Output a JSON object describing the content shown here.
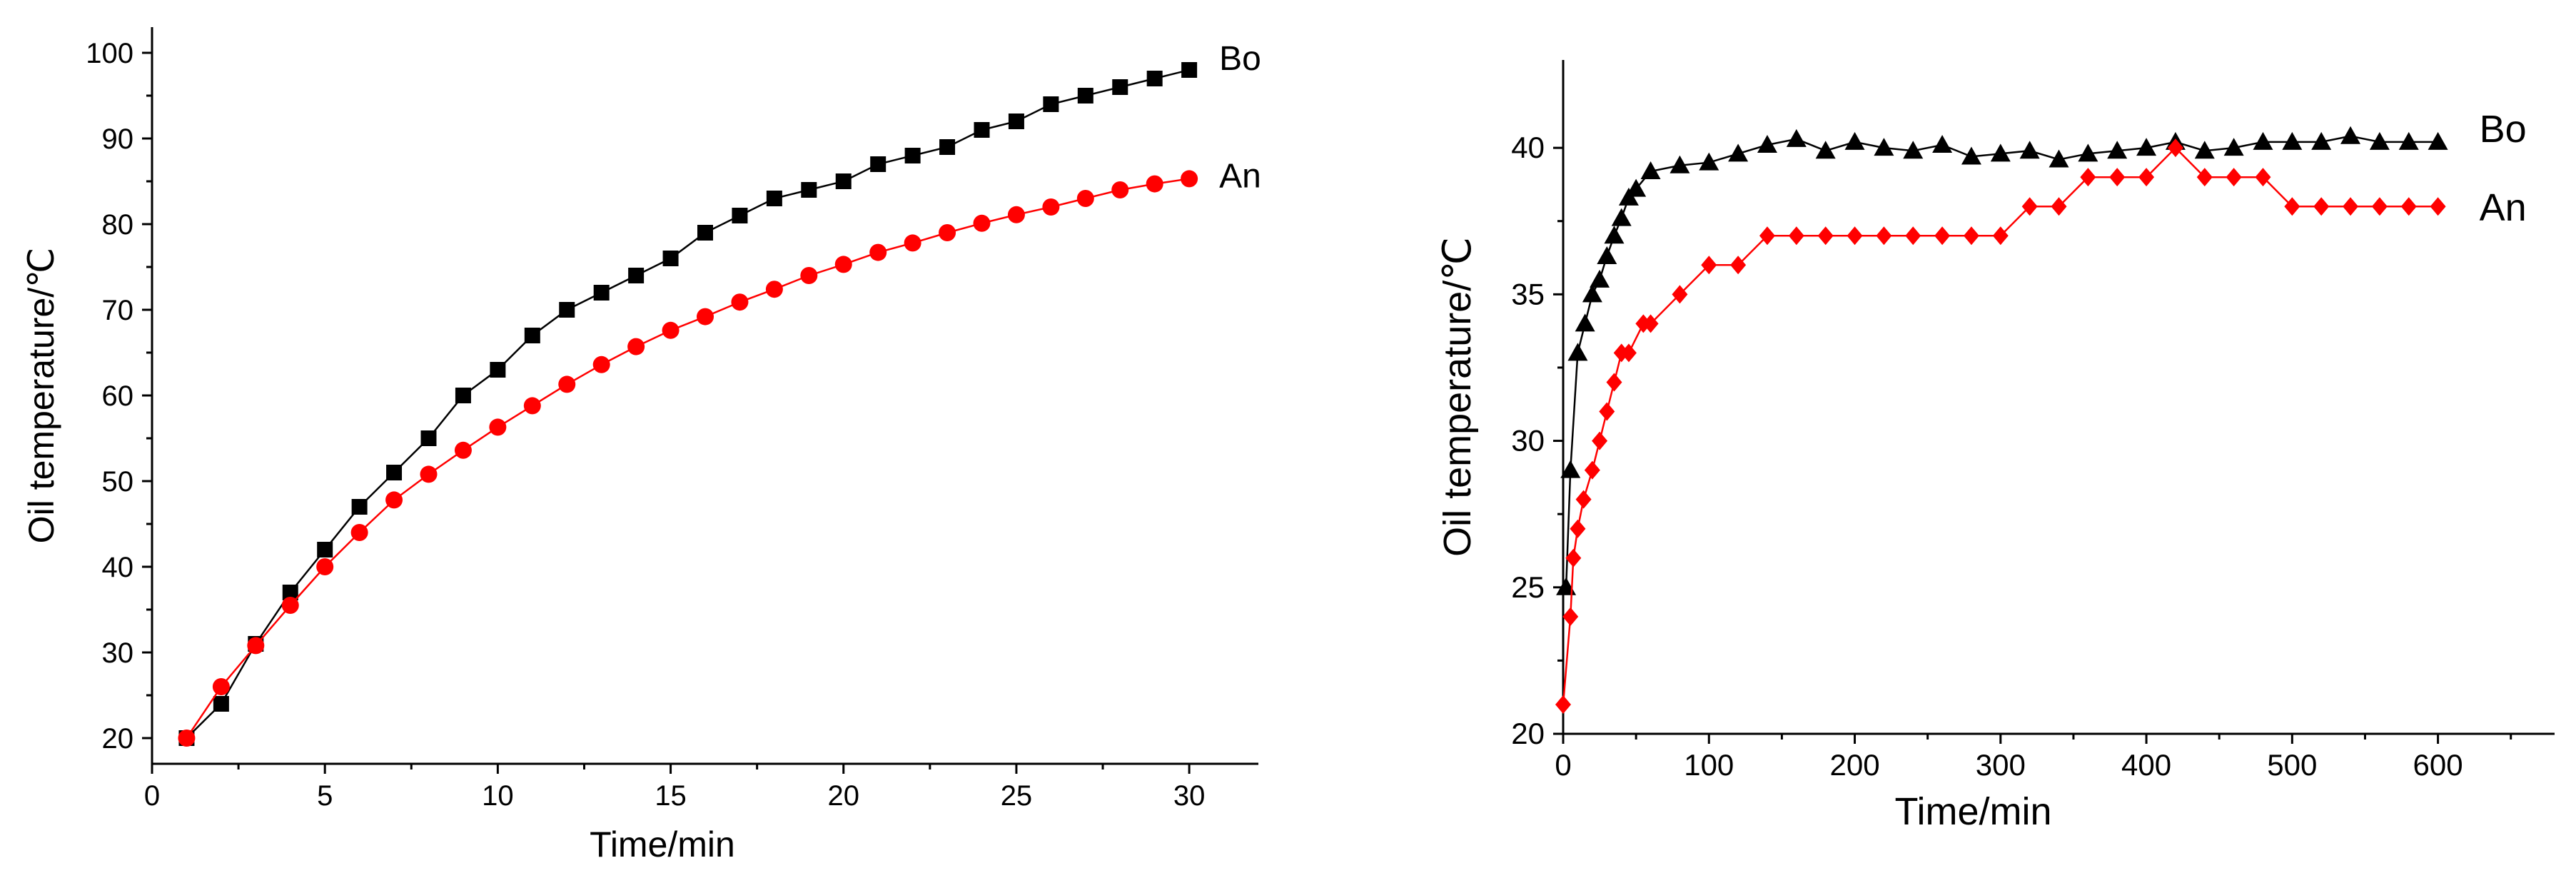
{
  "chart_data": [
    {
      "type": "line",
      "xlabel": "Time/min",
      "ylabel": "Oil temperature/℃",
      "xlim": [
        0,
        32
      ],
      "ylim": [
        17,
        103
      ],
      "xticks": [
        0,
        5,
        10,
        15,
        20,
        25,
        30
      ],
      "yticks": [
        20,
        30,
        40,
        50,
        60,
        70,
        80,
        90,
        100
      ],
      "legend": "right end of each series",
      "series": [
        {
          "name": "Bo",
          "color": "#000000",
          "marker": "square",
          "x": [
            1,
            2,
            3,
            4,
            5,
            6,
            7,
            8,
            9,
            10,
            11,
            12,
            13,
            14,
            15,
            16,
            17,
            18,
            19,
            20,
            21,
            22,
            23,
            24,
            25,
            26,
            27,
            28,
            29,
            30
          ],
          "values": [
            20,
            24,
            31,
            37,
            42,
            47,
            51,
            55,
            60,
            63,
            67,
            70,
            72,
            74,
            76,
            79,
            81,
            83,
            84,
            85,
            87,
            88,
            89,
            91,
            92,
            94,
            95,
            96,
            97,
            98
          ]
        },
        {
          "name": "An",
          "color": "#ff0000",
          "marker": "circle",
          "x": [
            1,
            2,
            3,
            4,
            5,
            6,
            7,
            8,
            9,
            10,
            11,
            12,
            13,
            14,
            15,
            16,
            17,
            18,
            19,
            20,
            21,
            22,
            23,
            24,
            25,
            26,
            27,
            28,
            29,
            30
          ],
          "values": [
            20,
            26,
            30.8,
            35.5,
            40,
            44,
            47.8,
            50.8,
            53.6,
            56.3,
            58.8,
            61.3,
            63.6,
            65.7,
            67.6,
            69.2,
            70.9,
            72.4,
            74,
            75.3,
            76.7,
            77.8,
            79,
            80.1,
            81.1,
            82,
            83,
            84,
            84.7,
            85.3
          ]
        }
      ]
    },
    {
      "type": "line",
      "xlabel": "Time/min",
      "ylabel": "Oil temperature/℃",
      "xlim": [
        0,
        680
      ],
      "ylim": [
        20,
        43
      ],
      "xticks": [
        0,
        100,
        200,
        300,
        400,
        500,
        600
      ],
      "yticks": [
        20,
        25,
        30,
        35,
        40
      ],
      "legend": "right end of each series",
      "series": [
        {
          "name": "Bo",
          "color": "#000000",
          "marker": "triangle",
          "x": [
            2,
            5,
            10,
            15,
            20,
            25,
            30,
            35,
            40,
            45,
            50,
            60,
            80,
            100,
            120,
            140,
            160,
            180,
            200,
            220,
            240,
            260,
            280,
            300,
            320,
            340,
            360,
            380,
            400,
            420,
            440,
            460,
            480,
            500,
            520,
            540,
            560,
            580,
            600
          ],
          "values": [
            25,
            29,
            33,
            34,
            35,
            35.5,
            36.3,
            37,
            37.6,
            38.3,
            38.6,
            39.2,
            39.4,
            39.5,
            39.8,
            40.1,
            40.3,
            39.9,
            40.2,
            40,
            39.9,
            40.1,
            39.7,
            39.8,
            39.9,
            39.6,
            39.8,
            39.9,
            40,
            40.2,
            39.9,
            40,
            40.2,
            40.2,
            40.2,
            40.4,
            40.2,
            40.2,
            40.2
          ]
        },
        {
          "name": "An",
          "color": "#ff0000",
          "marker": "diamond",
          "x": [
            0,
            5,
            7,
            10,
            14,
            20,
            25,
            30,
            35,
            40,
            45,
            55,
            60,
            80,
            100,
            120,
            140,
            160,
            180,
            200,
            220,
            240,
            260,
            280,
            300,
            320,
            340,
            360,
            380,
            400,
            420,
            440,
            460,
            480,
            500,
            520,
            540,
            560,
            580,
            600
          ],
          "values": [
            21,
            24,
            26,
            27,
            28,
            29,
            30,
            31,
            32,
            33,
            33,
            34,
            34,
            35,
            36,
            36,
            37,
            37,
            37,
            37,
            37,
            37,
            37,
            37,
            37,
            38,
            38,
            39,
            39,
            39,
            40,
            39,
            39,
            39,
            38,
            38,
            38,
            38,
            38,
            38
          ]
        }
      ]
    }
  ]
}
